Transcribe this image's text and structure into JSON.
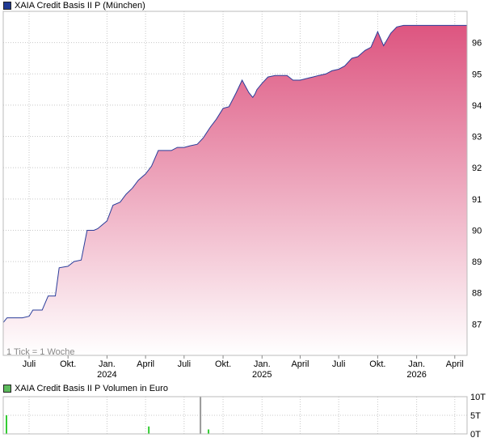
{
  "price_legend": {
    "label": "XAIA Credit Basis II P (München)",
    "swatch_color": "#1f3a93"
  },
  "volume_legend": {
    "label": "XAIA Credit Basis II P Volumen in Euro",
    "swatch_color": "#5dbb5d"
  },
  "tick_note": "1 Tick = 1 Woche",
  "colors": {
    "line": "#2a3d9a",
    "fill_top": "#dd5580",
    "fill_bottom": "#ffffff",
    "grid": "#c8c8c8",
    "volume_bar": "#33cc33"
  },
  "chart_data": [
    {
      "type": "area",
      "title": "XAIA Credit Basis II P (München)",
      "x_ticks": [
        "Juli",
        "Okt.",
        "Jan.",
        "April",
        "Juli",
        "Okt.",
        "Jan.",
        "April",
        "Juli",
        "Okt.",
        "Jan.",
        "April"
      ],
      "x_tick_years": [
        "",
        "",
        "2024",
        "",
        "",
        "",
        "2025",
        "",
        "",
        "",
        "2026",
        ""
      ],
      "xlim": [
        "2023-05-01",
        "2026-04-30"
      ],
      "y_ticks": [
        87,
        88,
        89,
        90,
        91,
        92,
        93,
        94,
        95,
        96
      ],
      "ylim": [
        86.0,
        97.0
      ],
      "grid": true,
      "x": [
        "2023-05-01",
        "2023-05-10",
        "2023-06-01",
        "2023-06-15",
        "2023-07-01",
        "2023-07-10",
        "2023-08-01",
        "2023-08-15",
        "2023-09-01",
        "2023-09-10",
        "2023-10-01",
        "2023-10-15",
        "2023-11-01",
        "2023-11-15",
        "2023-12-01",
        "2023-12-10",
        "2024-01-01",
        "2024-01-15",
        "2024-02-01",
        "2024-02-15",
        "2024-03-01",
        "2024-03-15",
        "2024-04-01",
        "2024-04-15",
        "2024-05-01",
        "2024-05-15",
        "2024-06-01",
        "2024-06-15",
        "2024-07-01",
        "2024-07-15",
        "2024-08-01",
        "2024-08-15",
        "2024-09-01",
        "2024-09-15",
        "2024-10-01",
        "2024-10-15",
        "2024-11-01",
        "2024-11-15",
        "2024-12-01",
        "2024-12-10",
        "2024-12-15",
        "2024-12-20",
        "2025-01-01",
        "2025-01-15",
        "2025-02-01",
        "2025-02-15",
        "2025-03-01",
        "2025-03-15",
        "2025-04-01",
        "2025-04-15",
        "2025-05-01",
        "2025-05-15",
        "2025-06-01",
        "2025-06-15",
        "2025-07-01",
        "2025-07-15",
        "2025-08-01",
        "2025-08-15",
        "2025-09-01",
        "2025-09-15",
        "2025-10-01",
        "2025-10-15",
        "2025-11-01",
        "2025-11-15",
        "2025-12-01",
        "2025-12-10",
        "2025-12-15",
        "2025-12-22",
        "2026-01-01",
        "2026-01-15",
        "2026-02-01",
        "2026-02-15",
        "2026-03-01",
        "2026-03-15",
        "2026-04-01",
        "2026-04-30"
      ],
      "values": [
        87.05,
        87.2,
        87.2,
        87.2,
        87.25,
        87.45,
        87.45,
        87.9,
        87.9,
        88.8,
        88.85,
        89.0,
        89.05,
        90.0,
        90.0,
        90.05,
        90.3,
        90.8,
        90.9,
        91.15,
        91.35,
        91.6,
        91.8,
        92.05,
        92.55,
        92.55,
        92.55,
        92.65,
        92.65,
        92.7,
        92.75,
        92.95,
        93.3,
        93.55,
        93.9,
        93.95,
        94.4,
        94.8,
        94.4,
        94.25,
        94.35,
        94.5,
        94.7,
        94.9,
        94.95,
        94.95,
        94.95,
        94.8,
        94.8,
        94.85,
        94.9,
        94.95,
        95.0,
        95.1,
        95.15,
        95.25,
        95.5,
        95.55,
        95.75,
        95.85,
        96.35,
        95.9,
        96.3,
        96.5,
        96.55,
        96.55,
        96.55,
        96.55,
        96.55,
        96.55,
        96.55,
        96.55,
        96.55,
        96.55,
        96.55,
        96.55
      ]
    },
    {
      "type": "bar",
      "title": "XAIA Credit Basis II P Volumen in Euro",
      "y_ticks": [
        "10T",
        "5T",
        "0T"
      ],
      "ylim": [
        0,
        10
      ],
      "x": [
        "2023-05-01",
        "2024-04-01",
        "2024-08-01",
        "2024-08-20"
      ],
      "values": [
        5.0,
        2.0,
        10.0,
        1.2
      ]
    }
  ]
}
